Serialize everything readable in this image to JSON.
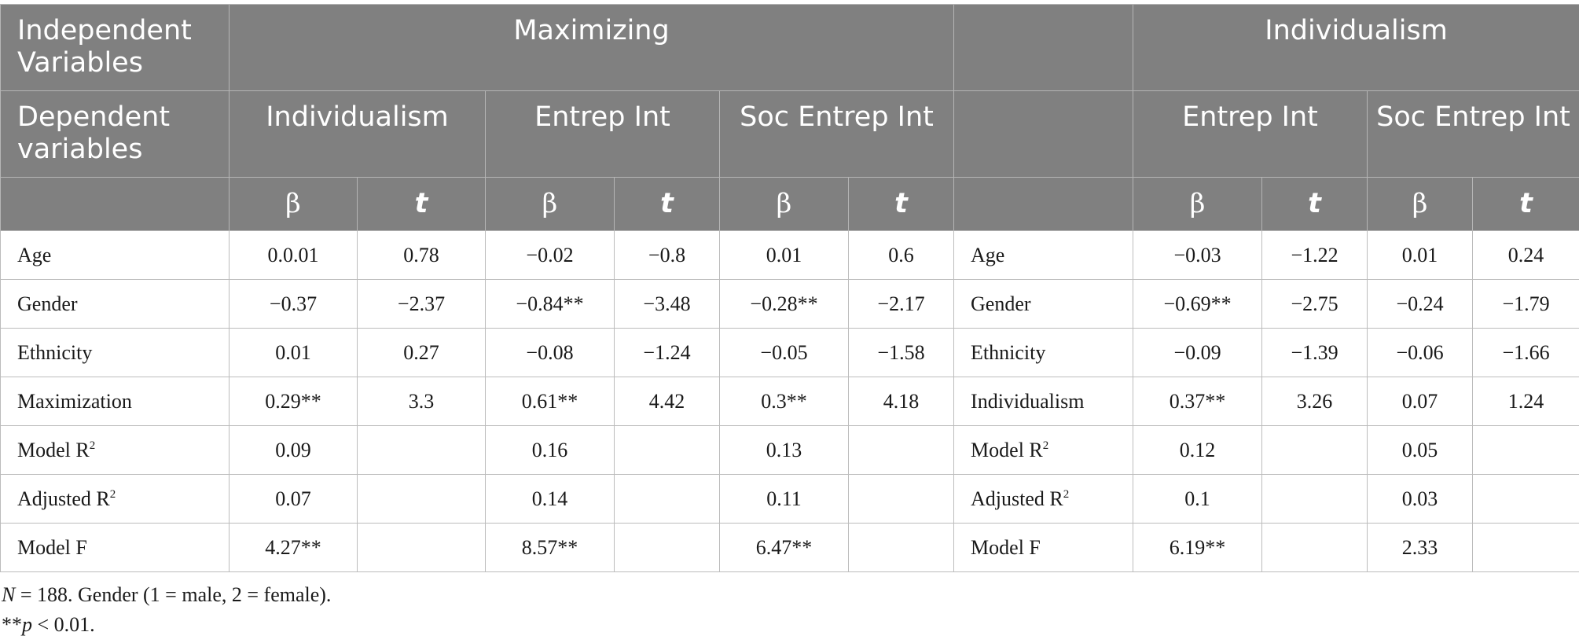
{
  "header": {
    "independent_label": "Independent Variables",
    "dependent_label": "Dependent variables",
    "group_maximizing": "Maximizing",
    "group_individualism": "Individualism",
    "dep_individualism": "Individualism",
    "dep_entrep_int_1": "Entrep Int",
    "dep_soc_entrep_int_1": "Soc Entrep Int",
    "dep_entrep_int_2": "Entrep Int",
    "dep_soc_entrep_int_2": "Soc Entrep Int",
    "beta": "β",
    "t": "t"
  },
  "rows_left": [
    {
      "label": "Age",
      "v": [
        "0.0.01",
        "0.78",
        "−0.02",
        "−0.8",
        "0.01",
        "0.6"
      ]
    },
    {
      "label": "Gender",
      "v": [
        "−0.37",
        "−2.37",
        "−0.84**",
        "−3.48",
        "−0.28**",
        "−2.17"
      ]
    },
    {
      "label": "Ethnicity",
      "v": [
        "0.01",
        "0.27",
        "−0.08",
        "−1.24",
        "−0.05",
        "−1.58"
      ]
    },
    {
      "label": "Maximization",
      "v": [
        "0.29**",
        "3.3",
        "0.61**",
        "4.42",
        "0.3**",
        "4.18"
      ]
    },
    {
      "label": "Model R",
      "sup": "2",
      "v": [
        "0.09",
        "",
        "0.16",
        "",
        "0.13",
        ""
      ]
    },
    {
      "label": "Adjusted R",
      "sup": "2",
      "v": [
        "0.07",
        "",
        "0.14",
        "",
        "0.11",
        ""
      ]
    },
    {
      "label": "Model F",
      "v": [
        "4.27**",
        "",
        "8.57**",
        "",
        "6.47**",
        ""
      ]
    }
  ],
  "rows_right": [
    {
      "label": "Age",
      "v": [
        "−0.03",
        "−1.22",
        "0.01",
        "0.24"
      ]
    },
    {
      "label": "Gender",
      "v": [
        "−0.69**",
        "−2.75",
        "−0.24",
        "−1.79"
      ]
    },
    {
      "label": "Ethnicity",
      "v": [
        "−0.09",
        "−1.39",
        "−0.06",
        "−1.66"
      ]
    },
    {
      "label": "Individualism",
      "v": [
        "0.37**",
        "3.26",
        "0.07",
        "1.24"
      ]
    },
    {
      "label": "Model R",
      "sup": "2",
      "v": [
        "0.12",
        "",
        "0.05",
        ""
      ]
    },
    {
      "label": "Adjusted R",
      "sup": "2",
      "v": [
        "0.1",
        "",
        "0.03",
        ""
      ]
    },
    {
      "label": "Model F",
      "v": [
        "6.19**",
        "",
        "2.33",
        ""
      ]
    }
  ],
  "notes": {
    "n_italic": "N",
    "line1_rest": " = 188. Gender (1 = male, 2 = female).",
    "stars": "**",
    "p_italic": "p",
    "line2_rest": " < 0.01."
  }
}
